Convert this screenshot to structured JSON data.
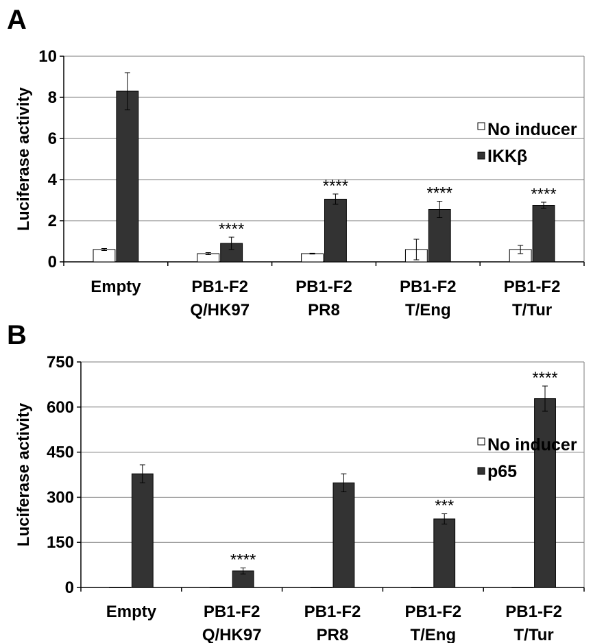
{
  "chart_data": [
    {
      "type": "bar",
      "panel_label": "A",
      "ylabel": "Luciferase activity",
      "ylim": [
        0,
        10
      ],
      "yticks": [
        "0",
        "2",
        "4",
        "6",
        "8",
        "10"
      ],
      "categories": [
        [
          "Empty"
        ],
        [
          "PB1-F2",
          "Q/HK97"
        ],
        [
          "PB1-F2",
          "PR8"
        ],
        [
          "PB1-F2",
          "T/Eng"
        ],
        [
          "PB1-F2",
          "T/Tur"
        ]
      ],
      "series": [
        {
          "name": "No inducer",
          "color": "#ffffff",
          "values": [
            0.6,
            0.4,
            0.4,
            0.6,
            0.6
          ],
          "errors": [
            0.05,
            0.05,
            0.02,
            0.5,
            0.2
          ]
        },
        {
          "name": "IKKβ",
          "color": "#333333",
          "values": [
            8.3,
            0.9,
            3.05,
            2.55,
            2.75
          ],
          "errors": [
            0.9,
            0.3,
            0.25,
            0.4,
            0.15
          ]
        }
      ],
      "significance": [
        "",
        "****",
        "****",
        "****",
        "****"
      ],
      "grid": true,
      "legend": "right"
    },
    {
      "type": "bar",
      "panel_label": "B",
      "ylabel": "Luciferase activity",
      "ylim": [
        0,
        750
      ],
      "yticks": [
        "0",
        "150",
        "300",
        "450",
        "600",
        "750"
      ],
      "categories": [
        [
          "Empty"
        ],
        [
          "PB1-F2",
          "Q/HK97"
        ],
        [
          "PB1-F2",
          "PR8"
        ],
        [
          "PB1-F2",
          "T/Eng"
        ],
        [
          "PB1-F2",
          "T/Tur"
        ]
      ],
      "series": [
        {
          "name": "No inducer",
          "color": "#ffffff",
          "values": [
            0,
            0,
            0,
            0,
            0
          ],
          "errors": [
            0,
            0,
            0,
            0,
            0
          ]
        },
        {
          "name": "p65",
          "color": "#333333",
          "values": [
            378,
            55,
            348,
            228,
            628
          ],
          "errors": [
            30,
            10,
            30,
            17,
            42
          ]
        }
      ],
      "significance": [
        "",
        "****",
        "",
        "***",
        "****"
      ],
      "grid": true,
      "legend": "right"
    }
  ]
}
